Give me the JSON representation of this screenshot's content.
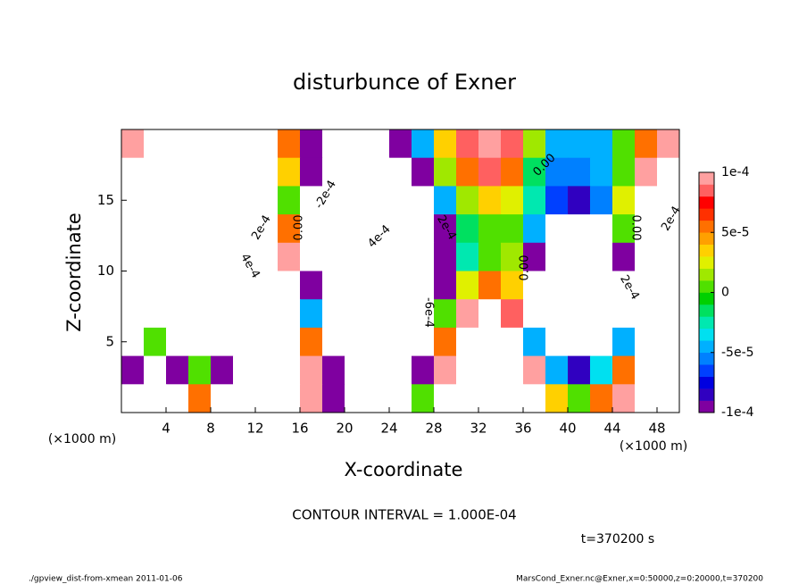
{
  "chart_data": {
    "type": "heatmap",
    "title": "disturbunce of Exner",
    "x_label": "X-coordinate",
    "y_label": "Z-coordinate",
    "x_unit": "(×1000 m)",
    "x_unit_right": "(×1000 m)",
    "contour_interval": "CONTOUR INTERVAL = 1.000E-04",
    "time_label": "t=370200 s",
    "footer_left": "./gpview_dist-from-xmean   2011-01-06",
    "footer_right": "MarsCond_Exner.nc@Exner,x=0:50000,z=0:20000,t=370200",
    "xlim": [
      0,
      50
    ],
    "ylim": [
      0,
      20
    ],
    "xticks": [
      4,
      8,
      12,
      16,
      20,
      24,
      28,
      32,
      36,
      40,
      44,
      48
    ],
    "yticks": [
      5,
      10,
      15
    ],
    "x": [
      1,
      3,
      5,
      7,
      9,
      11,
      13,
      15,
      17,
      19,
      21,
      23,
      25,
      27,
      29,
      31,
      33,
      35,
      37,
      39,
      41,
      43,
      45,
      47,
      49
    ],
    "y": [
      19,
      17,
      15,
      13,
      11,
      9,
      7,
      5,
      3,
      1
    ],
    "z": [
      [
        0.0001,
        0.0002,
        0.0003,
        0.0003,
        0.0003,
        0.0003,
        0.0002,
        5e-05,
        -0.0001,
        -0.0002,
        -0.0002,
        -0.0002,
        -0.0001,
        -5e-05,
        3e-05,
        8e-05,
        0.0001,
        8e-05,
        1e-05,
        -5e-05,
        -5e-05,
        -5e-05,
        0,
        5e-05,
        0.0001
      ],
      [
        0.0002,
        0.0003,
        0.0003,
        0.0003,
        0.0003,
        0.0003,
        0.0002,
        3e-05,
        -0.0001,
        -0.0002,
        -0.0003,
        -0.0003,
        -0.0002,
        -0.0001,
        1e-05,
        5e-05,
        8e-05,
        5e-05,
        -2e-05,
        -6e-05,
        -6e-05,
        -5e-05,
        0,
        0.0001,
        0.0002
      ],
      [
        0.0003,
        0.0004,
        0.0004,
        0.0004,
        0.0004,
        0.0003,
        0.0002,
        0,
        -0.0002,
        -0.0003,
        -0.0004,
        -0.0004,
        -0.0003,
        -0.0002,
        -5e-05,
        1e-05,
        3e-05,
        2e-05,
        -3e-05,
        -7e-05,
        -8e-05,
        -6e-05,
        2e-05,
        0.0002,
        0.0003
      ],
      [
        0.0004,
        0.0005,
        0.0005,
        0.0005,
        0.0005,
        0.0004,
        0.0003,
        5e-05,
        -0.0002,
        -0.0004,
        -0.0005,
        -0.0005,
        -0.0004,
        -0.0003,
        -0.0001,
        -2e-05,
        0,
        0,
        -5e-05,
        -0.0002,
        -0.0003,
        -0.0002,
        0,
        0.0002,
        0.0004
      ],
      [
        0.0005,
        0.0006,
        0.0006,
        0.0006,
        0.0006,
        0.0005,
        0.0004,
        0.0001,
        -0.0002,
        -0.0004,
        -0.0006,
        -0.0006,
        -0.0005,
        -0.0003,
        -0.0001,
        -3e-05,
        0,
        1e-05,
        -0.0001,
        -0.0004,
        -0.0006,
        -0.0005,
        -0.0001,
        0.0002,
        0.0004
      ],
      [
        0.0006,
        0.0007,
        0.0007,
        0.0007,
        0.0007,
        0.0006,
        0.0005,
        0.0002,
        -0.0001,
        -0.0004,
        -0.0006,
        -0.0007,
        -0.0006,
        -0.0003,
        -0.0001,
        2e-05,
        5e-05,
        3e-05,
        -0.0002,
        -0.0005,
        -0.0007,
        -0.0006,
        -0.0002,
        0.0002,
        0.0005
      ],
      [
        0.0006,
        0.0006,
        0.0006,
        0.0006,
        0.0007,
        0.0007,
        0.0006,
        0.0003,
        -5e-05,
        -0.0003,
        -0.0006,
        -0.0007,
        -0.0006,
        -0.0003,
        0,
        0.0001,
        0.00015,
        8e-05,
        -0.0002,
        -0.0005,
        -0.0007,
        -0.0006,
        -0.0002,
        0.0002,
        0.0005
      ],
      [
        0.0003,
        0,
        0.0003,
        0.0005,
        0.0006,
        0.0006,
        0.0005,
        0.0004,
        5e-05,
        -0.0002,
        -0.0005,
        -0.0006,
        -0.0005,
        -0.0002,
        5e-05,
        0.0003,
        0.0004,
        0.0002,
        -5e-05,
        -0.0003,
        -0.0004,
        -0.0003,
        -5e-05,
        0.0003,
        0.0005
      ],
      [
        -0.0001,
        -0.0004,
        -0.0001,
        0,
        -0.0001,
        0.0004,
        0.0005,
        0.0005,
        0.0001,
        -0.0001,
        -0.0004,
        -0.0005,
        -0.0004,
        -0.0001,
        0.0001,
        0.0004,
        0.0005,
        0.0003,
        0.0001,
        -5e-05,
        -8e-05,
        -4e-05,
        5e-05,
        0.0004,
        0.0006
      ],
      [
        -0.0002,
        -0.0005,
        -0.0002,
        5e-05,
        -0.0002,
        0.0003,
        0.0005,
        0.0005,
        0.0001,
        -0.0001,
        -0.0003,
        -0.0004,
        -0.0003,
        0,
        0.0002,
        0.0005,
        0.0006,
        0.0004,
        0.00015,
        3e-05,
        0,
        5e-05,
        0.0001,
        0.0004,
        0.0006
      ]
    ],
    "colorbar_lim": [
      -0.0001,
      0.0001
    ],
    "colorbar_ticks": [
      {
        "value": 0.0001,
        "label": "1e-4"
      },
      {
        "value": 5e-05,
        "label": "5e-5"
      },
      0,
      {
        "value": -5e-05,
        "label": "-5e-5"
      },
      {
        "value": -0.0001,
        "label": "-1e-4"
      }
    ],
    "colormap": [
      "#7f00a0",
      "#3000c0",
      "#0000e0",
      "#0040ff",
      "#0080ff",
      "#00b0ff",
      "#00e0f0",
      "#00e8b0",
      "#00e060",
      "#00d000",
      "#50e000",
      "#a0e800",
      "#e0f000",
      "#ffd000",
      "#ffa000",
      "#ff7000",
      "#ff3000",
      "#ff0000",
      "#ff6060",
      "#ffa0a0"
    ],
    "annotations": [
      "2e-4",
      "4e-4",
      "0.00",
      "-2e-4",
      "4e-4",
      "2e-4",
      "-6e-4",
      "0.00",
      "0.00",
      "0.00",
      "2e-4",
      "2e-4"
    ]
  }
}
